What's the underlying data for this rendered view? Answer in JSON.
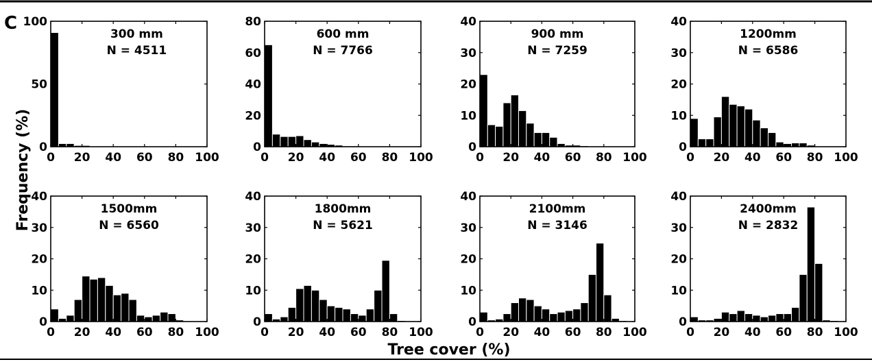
{
  "figure": {
    "panel_letter": "C",
    "ylabel": "Frequency (%)",
    "xlabel": "Tree cover (%)"
  },
  "chart_data": [
    {
      "type": "bar",
      "title": "300  mm",
      "subtitle": "N = 4511",
      "x_centers": [
        2.5,
        7.5,
        12.5,
        17.5,
        22.5,
        27.5,
        32.5,
        37.5,
        42.5,
        47.5,
        52.5,
        57.5,
        62.5,
        67.5,
        72.5,
        77.5,
        82.5,
        87.5,
        92.5,
        97.5
      ],
      "values": [
        91,
        2.5,
        2.5,
        1,
        1,
        0.5,
        0.5,
        0.5,
        0.3,
        0.2,
        0,
        0,
        0,
        0,
        0,
        0,
        0,
        0,
        0,
        0
      ],
      "xlim": [
        0,
        100
      ],
      "ylim": [
        0,
        100
      ],
      "xticks": [
        "0",
        "20",
        "40",
        "60",
        "80",
        "100"
      ],
      "yticks": [
        "0",
        "50",
        "100"
      ]
    },
    {
      "type": "bar",
      "title": "600  mm",
      "subtitle": "N = 7766",
      "x_centers": [
        2.5,
        7.5,
        12.5,
        17.5,
        22.5,
        27.5,
        32.5,
        37.5,
        42.5,
        47.5,
        52.5,
        57.5,
        62.5,
        67.5,
        72.5,
        77.5,
        82.5,
        87.5,
        92.5,
        97.5
      ],
      "values": [
        65,
        8,
        6.5,
        6.5,
        7,
        4.5,
        3,
        2,
        1.5,
        1,
        0.5,
        0.5,
        0.3,
        0.2,
        0.2,
        0.2,
        0.1,
        0,
        0,
        0
      ],
      "xlim": [
        0,
        100
      ],
      "ylim": [
        0,
        80
      ],
      "xticks": [
        "0",
        "20",
        "40",
        "60",
        "80",
        "100"
      ],
      "yticks": [
        "0",
        "20",
        "40",
        "60",
        "80"
      ]
    },
    {
      "type": "bar",
      "title": "900  mm",
      "subtitle": "N = 7259",
      "x_centers": [
        2.5,
        7.5,
        12.5,
        17.5,
        22.5,
        27.5,
        32.5,
        37.5,
        42.5,
        47.5,
        52.5,
        57.5,
        62.5,
        67.5,
        72.5,
        77.5,
        82.5,
        87.5,
        92.5,
        97.5
      ],
      "values": [
        23,
        7,
        6.5,
        14,
        16.5,
        11.5,
        7.5,
        4.5,
        4.5,
        3,
        1,
        0.5,
        0.5,
        0.3,
        0.2,
        0.1,
        0,
        0,
        0.1,
        0
      ],
      "xlim": [
        0,
        100
      ],
      "ylim": [
        0,
        40
      ],
      "xticks": [
        "0",
        "20",
        "40",
        "60",
        "80",
        "100"
      ],
      "yticks": [
        "0",
        "10",
        "20",
        "30",
        "40"
      ]
    },
    {
      "type": "bar",
      "title": "1200mm",
      "subtitle": "N = 6586",
      "x_centers": [
        2.5,
        7.5,
        12.5,
        17.5,
        22.5,
        27.5,
        32.5,
        37.5,
        42.5,
        47.5,
        52.5,
        57.5,
        62.5,
        67.5,
        72.5,
        77.5,
        82.5,
        87.5,
        92.5,
        97.5
      ],
      "values": [
        9,
        2.5,
        2.5,
        9.5,
        16,
        13.5,
        13,
        12,
        8.5,
        6,
        4.5,
        1.5,
        1,
        1.2,
        1.2,
        0.5,
        0.2,
        0,
        0.2,
        0
      ],
      "xlim": [
        0,
        100
      ],
      "ylim": [
        0,
        40
      ],
      "xticks": [
        "0",
        "20",
        "40",
        "60",
        "80",
        "100"
      ],
      "yticks": [
        "0",
        "10",
        "20",
        "30",
        "40"
      ]
    },
    {
      "type": "bar",
      "title": "1500mm",
      "subtitle": "N = 6560",
      "x_centers": [
        2.5,
        7.5,
        12.5,
        17.5,
        22.5,
        27.5,
        32.5,
        37.5,
        42.5,
        47.5,
        52.5,
        57.5,
        62.5,
        67.5,
        72.5,
        77.5,
        82.5,
        87.5,
        92.5,
        97.5
      ],
      "values": [
        4,
        1,
        2,
        7,
        14.5,
        13.5,
        14,
        11.5,
        8.5,
        9,
        7,
        2,
        1.5,
        2,
        3,
        2.5,
        0.5,
        0.2,
        0,
        0
      ],
      "xlim": [
        0,
        100
      ],
      "ylim": [
        0,
        40
      ],
      "xticks": [
        "0",
        "20",
        "40",
        "60",
        "80",
        "100"
      ],
      "yticks": [
        "0",
        "10",
        "20",
        "30",
        "40"
      ]
    },
    {
      "type": "bar",
      "title": "1800mm",
      "subtitle": "N = 5621",
      "x_centers": [
        2.5,
        7.5,
        12.5,
        17.5,
        22.5,
        27.5,
        32.5,
        37.5,
        42.5,
        47.5,
        52.5,
        57.5,
        62.5,
        67.5,
        72.5,
        77.5,
        82.5,
        87.5,
        92.5,
        97.5
      ],
      "values": [
        2.5,
        0.8,
        1.5,
        4.5,
        10.5,
        11.5,
        10,
        7,
        5,
        4.5,
        4,
        2.5,
        2,
        4,
        10,
        19.5,
        2.5,
        0.3,
        0,
        0
      ],
      "xlim": [
        0,
        100
      ],
      "ylim": [
        0,
        40
      ],
      "xticks": [
        "0",
        "20",
        "40",
        "60",
        "80",
        "100"
      ],
      "yticks": [
        "0",
        "10",
        "20",
        "30",
        "40"
      ]
    },
    {
      "type": "bar",
      "title": "2100mm",
      "subtitle": "N = 3146",
      "x_centers": [
        2.5,
        7.5,
        12.5,
        17.5,
        22.5,
        27.5,
        32.5,
        37.5,
        42.5,
        47.5,
        52.5,
        57.5,
        62.5,
        67.5,
        72.5,
        77.5,
        82.5,
        87.5,
        92.5,
        97.5
      ],
      "values": [
        3,
        0.5,
        0.8,
        2.5,
        6,
        7.5,
        7,
        5,
        4,
        2.5,
        3,
        3.5,
        4,
        6,
        15,
        25,
        8.5,
        1,
        0.3,
        0.2
      ],
      "xlim": [
        0,
        100
      ],
      "ylim": [
        0,
        40
      ],
      "xticks": [
        "0",
        "20",
        "40",
        "60",
        "80",
        "100"
      ],
      "yticks": [
        "0",
        "10",
        "20",
        "30",
        "40"
      ]
    },
    {
      "type": "bar",
      "title": "2400mm",
      "subtitle": "N = 2832",
      "x_centers": [
        2.5,
        7.5,
        12.5,
        17.5,
        22.5,
        27.5,
        32.5,
        37.5,
        42.5,
        47.5,
        52.5,
        57.5,
        62.5,
        67.5,
        72.5,
        77.5,
        82.5,
        87.5,
        92.5,
        97.5
      ],
      "values": [
        1.5,
        0.5,
        0.5,
        1,
        3,
        2.5,
        3.5,
        2.5,
        2,
        1.5,
        2,
        2.5,
        2.5,
        4.5,
        15,
        36.5,
        18.5,
        0.5,
        0.3,
        0
      ],
      "xlim": [
        0,
        100
      ],
      "ylim": [
        0,
        40
      ],
      "xticks": [
        "0",
        "20",
        "40",
        "60",
        "80",
        "100"
      ],
      "yticks": [
        "0",
        "10",
        "20",
        "30",
        "40"
      ]
    }
  ]
}
